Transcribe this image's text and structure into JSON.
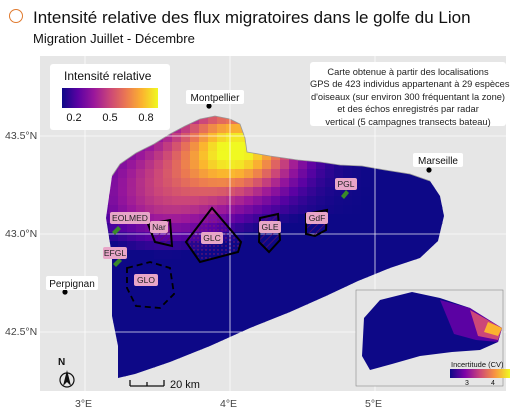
{
  "header": {
    "title": "Intensité relative des flux migratoires dans le golfe du Lion",
    "subtitle": "Migration Juillet - Décembre",
    "icon": "bird-logo-icon",
    "icon_color": "#e07a2f"
  },
  "legend": {
    "title": "Intensité relative",
    "ticks": [
      "0.2",
      "0.5",
      "0.8"
    ],
    "colormap": "plasma"
  },
  "note": {
    "lines": [
      "Carte obtenue à partir des localisations",
      "GPS de 423 individus appartenant à 29 espèces",
      "d'oiseaux (sur environ 300 fréquentant la zone)",
      "et des échos enregistrés par radar",
      "vertical (5 campagnes transects bateau)"
    ]
  },
  "axes": {
    "y_labels": [
      "43.5°N",
      "43.0°N",
      "42.5°N"
    ],
    "x_labels": [
      "3°E",
      "4°E",
      "5°E"
    ]
  },
  "places": {
    "montpellier": "Montpellier",
    "marseille": "Marseille",
    "perpignan": "Perpignan"
  },
  "zones": {
    "nar": "Nar",
    "glc": "GLC",
    "gle": "GLE",
    "gdf": "GdF",
    "glo": "GLO",
    "eolmed": "EOLMED",
    "efgl": "EFGL",
    "pgl": "PGL"
  },
  "inset": {
    "legend_title": "Incertitude (CV)",
    "ticks": [
      "3",
      "4"
    ]
  },
  "scale_bar": {
    "label": "20 km"
  },
  "north_arrow": {
    "label": "N"
  },
  "colors": {
    "land": "#e6e6e6",
    "sea_background": "#ffffff",
    "wind_farm": "#3a8a2a",
    "zone_label_bg": "#e8a6c8"
  }
}
